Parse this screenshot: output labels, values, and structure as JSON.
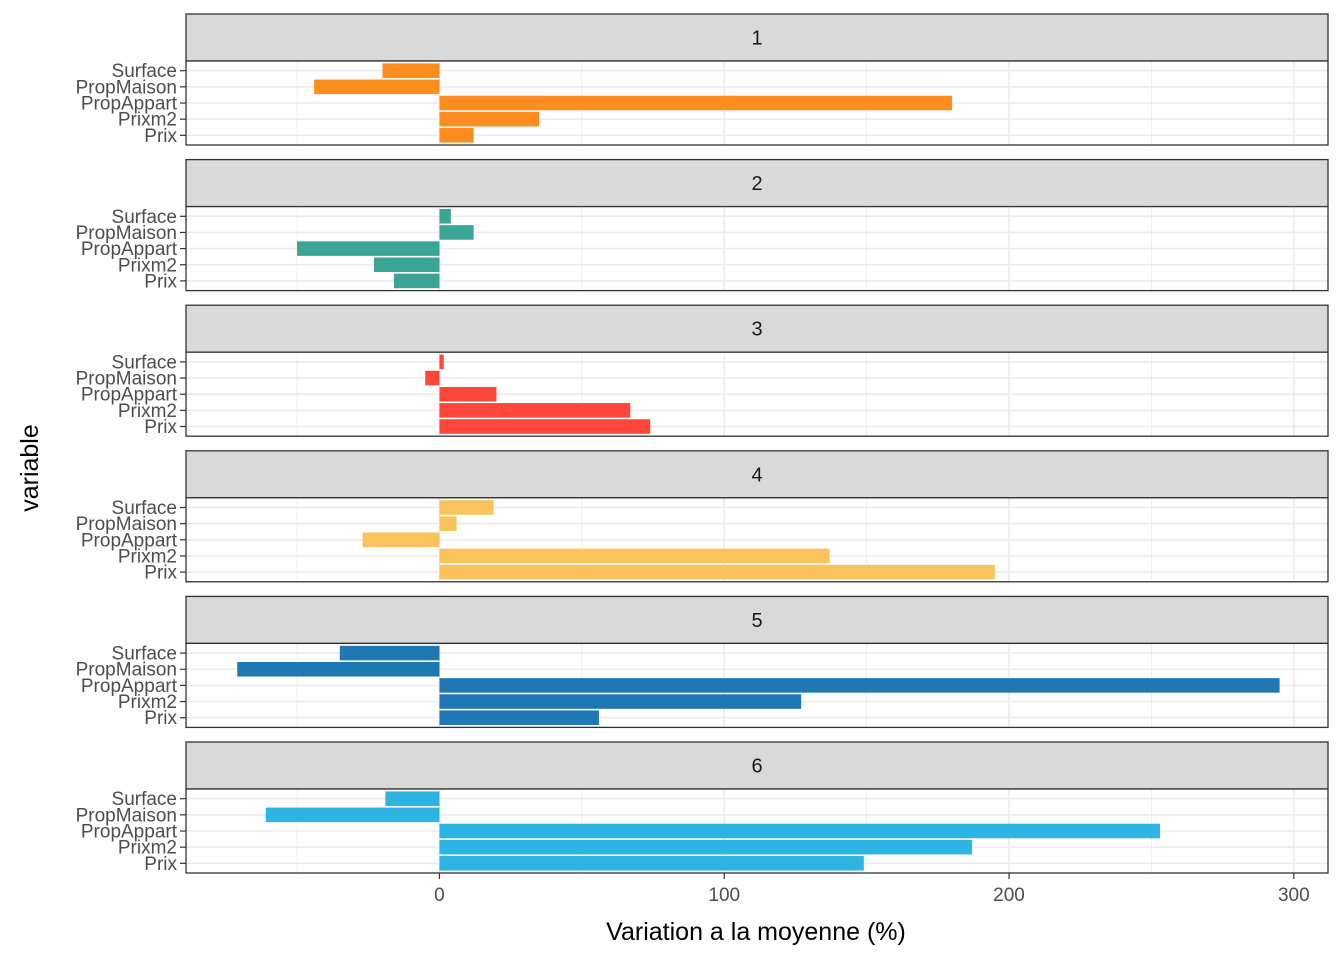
{
  "chart_data": {
    "type": "bar",
    "orientation": "horizontal",
    "facet_layout": "rows",
    "xlabel": "Variation a la moyenne (%)",
    "ylabel": "variable",
    "xlim": [
      -89,
      312
    ],
    "x_ticks": [
      0,
      100,
      200,
      300
    ],
    "x_tick_labels": [
      "0",
      "100",
      "200",
      "300"
    ],
    "categories": [
      "Surface",
      "PropMaison",
      "PropAppart",
      "Prixm2",
      "Prix"
    ],
    "grid": true,
    "legend": "none",
    "panels": [
      {
        "label": "1",
        "color": "#FF8C1E",
        "values": [
          -20,
          -44,
          180,
          35,
          12
        ]
      },
      {
        "label": "2",
        "color": "#3AA596",
        "values": [
          4,
          12,
          -50,
          -23,
          -16
        ]
      },
      {
        "label": "3",
        "color": "#FF463A",
        "values": [
          1.5,
          -5,
          20,
          67,
          74
        ]
      },
      {
        "label": "4",
        "color": "#F9C25A",
        "values": [
          19,
          6,
          -27,
          137,
          195
        ]
      },
      {
        "label": "5",
        "color": "#1F77B4",
        "values": [
          -35,
          -71,
          295,
          127,
          56
        ]
      },
      {
        "label": "6",
        "color": "#2EB4E3",
        "values": [
          -19,
          -61,
          253,
          187,
          149
        ]
      }
    ]
  }
}
